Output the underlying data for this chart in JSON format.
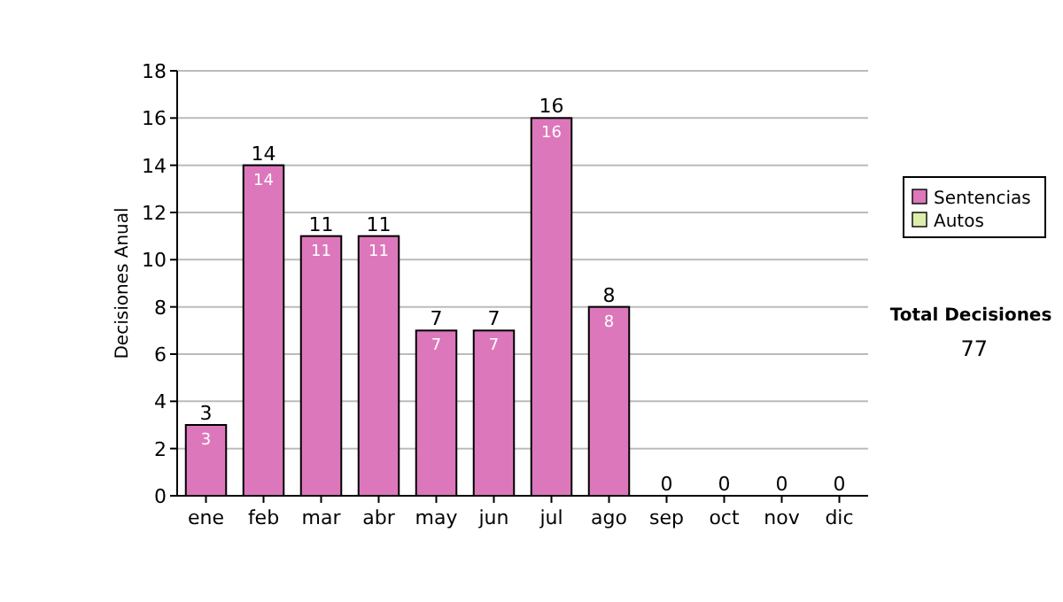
{
  "chart_data": {
    "type": "bar",
    "stacked": true,
    "ylabel": "Decisiones Anual",
    "categories": [
      "ene",
      "feb",
      "mar",
      "abr",
      "may",
      "jun",
      "jul",
      "ago",
      "sep",
      "oct",
      "nov",
      "dic"
    ],
    "series": [
      {
        "name": "Sentencias",
        "color": "#dd77bb",
        "values": [
          3,
          14,
          11,
          11,
          7,
          7,
          16,
          8,
          0,
          0,
          0,
          0
        ],
        "value_labels": [
          "3",
          "14",
          "11",
          "11",
          "7",
          "7",
          "16",
          "8",
          null,
          null,
          null,
          null
        ]
      },
      {
        "name": "Autos",
        "color": "#ddeeaa",
        "values": [
          0,
          0,
          0,
          0,
          0,
          0,
          0,
          0,
          0,
          0,
          0,
          0
        ]
      }
    ],
    "totals": [
      "3",
      "14",
      "11",
      "11",
      "7",
      "7",
      "16",
      "8",
      "0",
      "0",
      "0",
      "0"
    ],
    "ylim": [
      0,
      18
    ],
    "yticks": [
      0,
      2,
      4,
      6,
      8,
      10,
      12,
      14,
      16,
      18
    ],
    "grid": "y",
    "legend": "right",
    "annotations": [
      "Total Decisiones 77"
    ]
  }
}
